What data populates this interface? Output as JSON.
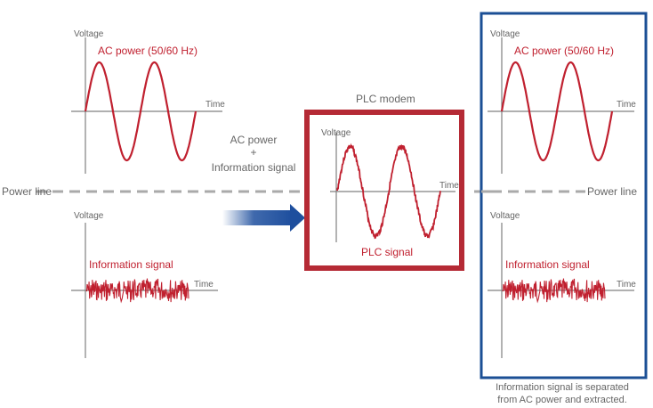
{
  "axis_labels": {
    "voltage": "Voltage",
    "time": "Time"
  },
  "power_line_label": "Power line",
  "left_top_plot": {
    "title": "AC power (50/60 Hz)"
  },
  "left_bottom_plot": {
    "title": "Information signal"
  },
  "combine_label": {
    "line1": "AC power",
    "plus": "+",
    "line2": "Information signal"
  },
  "plc_modem": {
    "label": "PLC modem",
    "signal_label": "PLC signal"
  },
  "right_top_plot": {
    "title": "AC power (50/60 Hz)"
  },
  "right_bottom_plot": {
    "title": "Information signal"
  },
  "caption": {
    "line1": "Information signal is separated",
    "line2": "from AC power and extracted."
  },
  "colors": {
    "signal_red": "#c0202f",
    "modem_box": "#b52a35",
    "separator_box": "#1b4f95",
    "arrow_blue": "#1e4f9e",
    "axis_gray": "#808080",
    "power_line_gray": "#aaaaaa"
  },
  "icons": {
    "flow_arrow": "arrow-right-icon"
  }
}
